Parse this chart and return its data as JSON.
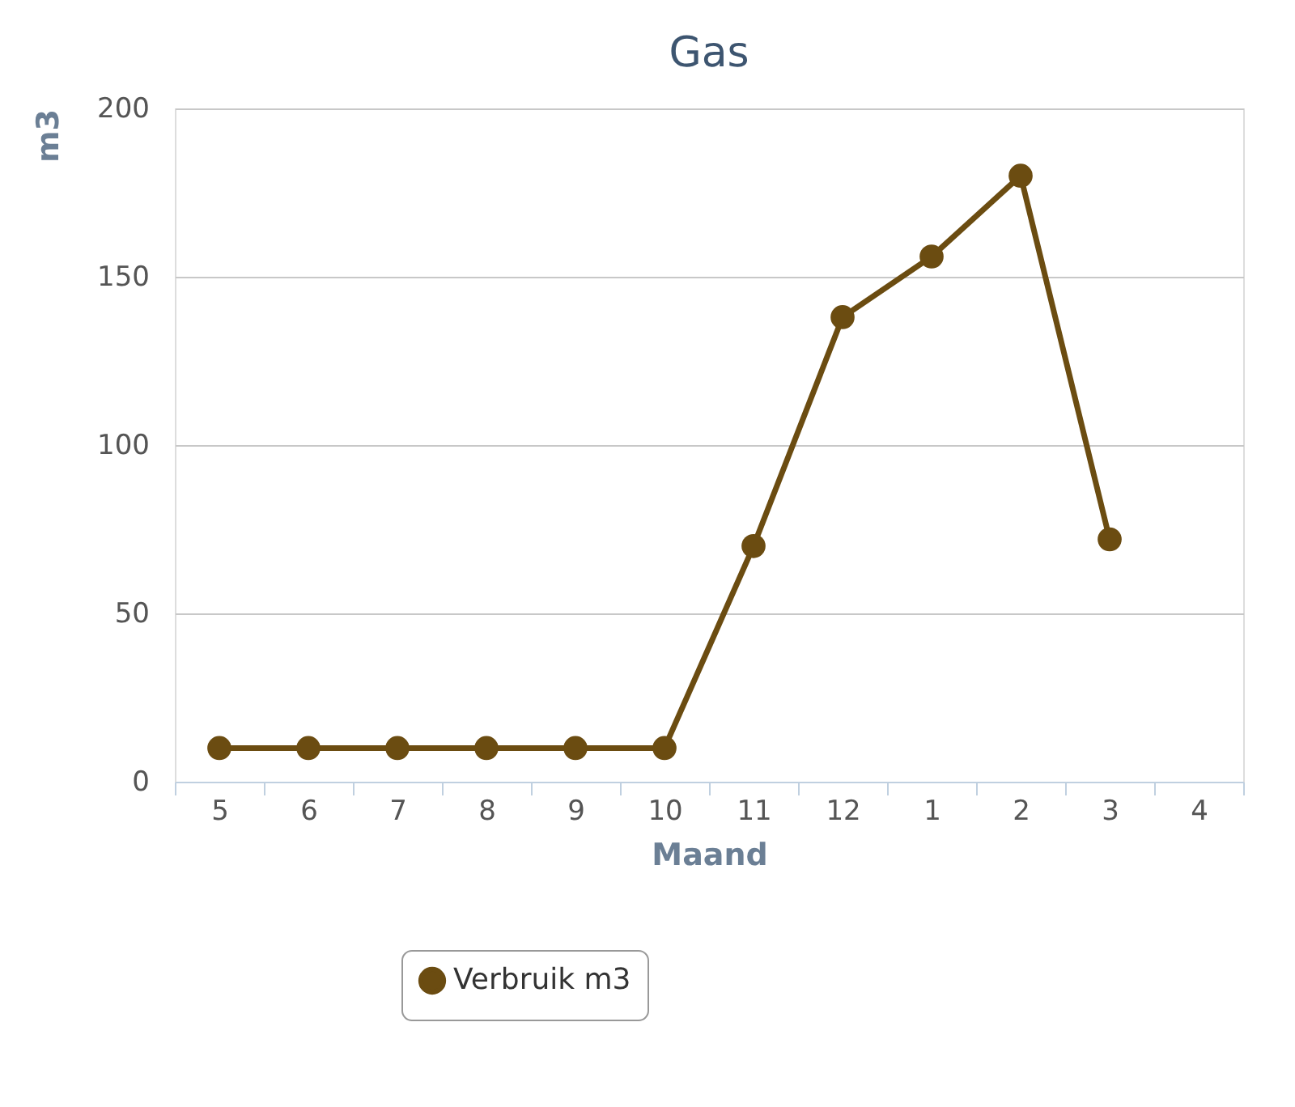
{
  "chart_data": {
    "type": "line",
    "title": "Gas",
    "xlabel": "Maand",
    "ylabel": "m3",
    "categories": [
      "5",
      "6",
      "7",
      "8",
      "9",
      "10",
      "11",
      "12",
      "1",
      "2",
      "3",
      "4"
    ],
    "series": [
      {
        "name": "Verbruik m3",
        "color": "#6b4c11",
        "values": [
          10,
          10,
          10,
          10,
          10,
          10,
          70,
          138,
          156,
          180,
          72,
          null
        ]
      }
    ],
    "ylim": [
      0,
      200
    ],
    "yticks": [
      0,
      50,
      100,
      150,
      200
    ],
    "grid": "y",
    "legend": "bottom",
    "marker": "circle",
    "line_style": "solid"
  }
}
